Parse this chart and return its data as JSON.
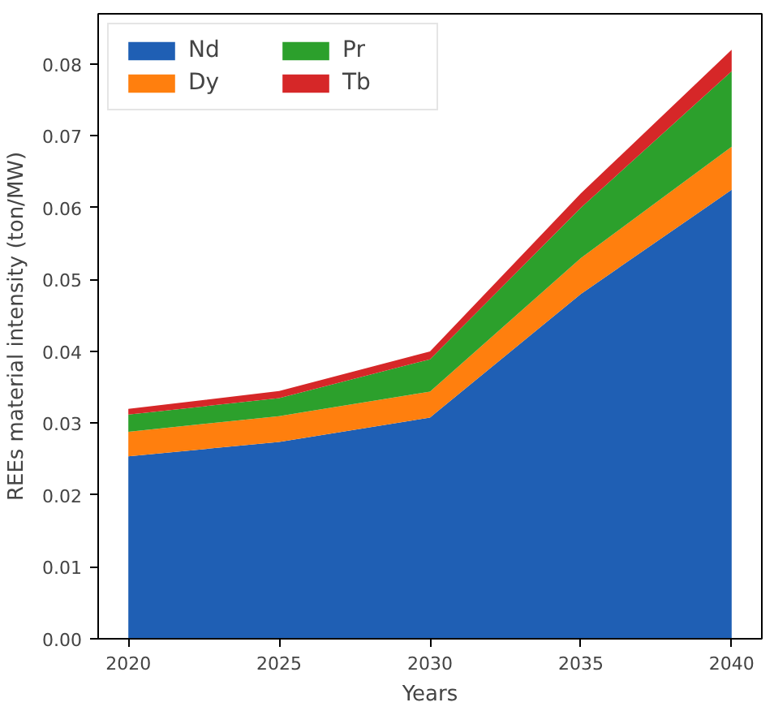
{
  "chart_data": {
    "type": "area",
    "stacked": true,
    "xlabel": "Years",
    "ylabel": "REEs material intensity (ton/MW)",
    "x": [
      2020,
      2025,
      2030,
      2035,
      2040
    ],
    "series": [
      {
        "name": "Nd",
        "color": "#1f5fb4",
        "values": [
          0.0254,
          0.0274,
          0.0308,
          0.048,
          0.0625
        ]
      },
      {
        "name": "Dy",
        "color": "#ff7f0e",
        "values": [
          0.0034,
          0.0036,
          0.0036,
          0.005,
          0.006
        ]
      },
      {
        "name": "Pr",
        "color": "#2ca02c",
        "values": [
          0.0024,
          0.0025,
          0.0045,
          0.007,
          0.0105
        ]
      },
      {
        "name": "Tb",
        "color": "#d62728",
        "values": [
          0.0008,
          0.001,
          0.0011,
          0.002,
          0.003
        ]
      }
    ],
    "xlim": [
      2019,
      2041
    ],
    "ylim": [
      0,
      0.087
    ],
    "xticks": [
      2020,
      2025,
      2030,
      2035,
      2040
    ],
    "yticks": [
      {
        "value": 0,
        "label": "0.00"
      },
      {
        "value": 0.01,
        "label": "0.01"
      },
      {
        "value": 0.02,
        "label": "0.02"
      },
      {
        "value": 0.03,
        "label": "0.03"
      },
      {
        "value": 0.04,
        "label": "0.04"
      },
      {
        "value": 0.05,
        "label": "0.05"
      },
      {
        "value": 0.06,
        "label": "0.06"
      },
      {
        "value": 0.07,
        "label": "0.07"
      },
      {
        "value": 0.08,
        "label": "0.08"
      }
    ],
    "legend": "top left",
    "grid": false
  }
}
